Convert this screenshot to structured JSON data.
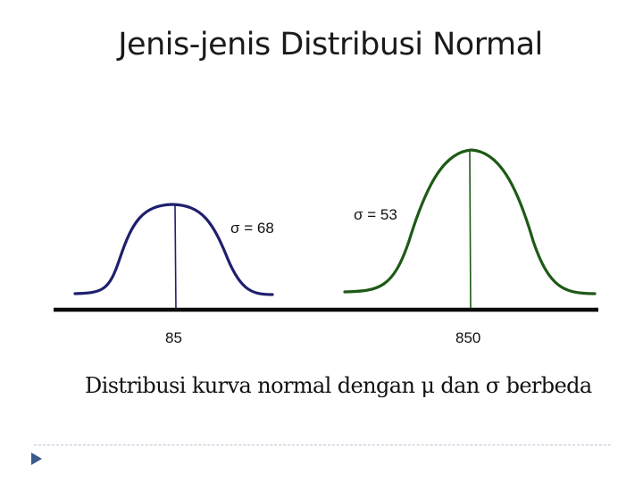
{
  "title": "Jenis-jenis Distribusi Normal",
  "curves": [
    {
      "sigma_label": "σ = 68",
      "mean_label": "85",
      "color": "#1f1f6e"
    },
    {
      "sigma_label": "σ = 53",
      "mean_label": "850",
      "color": "#1e5a16"
    }
  ],
  "caption": "Distribusi kurva normal dengan μ dan σ berbeda",
  "colors": {
    "axis": "#0a0a0a",
    "footer_arrow": "#3a5a8c",
    "footer_line": "#b8c4d4"
  }
}
